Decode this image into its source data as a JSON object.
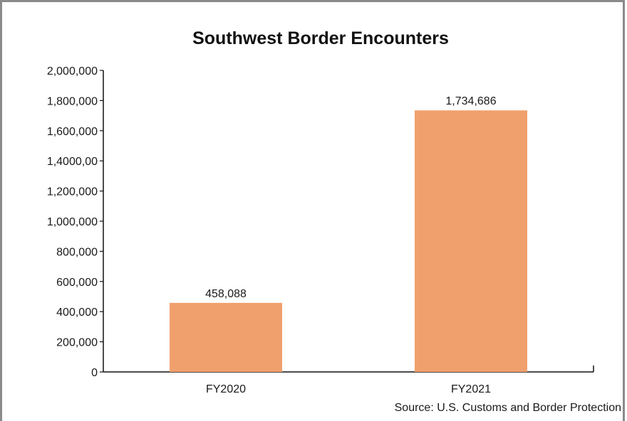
{
  "chart_data": {
    "type": "bar",
    "title": "Southwest Border Encounters",
    "categories": [
      "FY2020",
      "FY2021"
    ],
    "values": [
      458088,
      1734686
    ],
    "value_labels": [
      "458,088",
      "1,734,686"
    ],
    "ylim": [
      0,
      2000000
    ],
    "yticks": [
      0,
      200000,
      400000,
      600000,
      800000,
      1000000,
      1200000,
      1400000,
      1600000,
      1800000,
      2000000
    ],
    "ytick_labels": [
      "0",
      "200,000",
      "400,000",
      "600,000",
      "800,000",
      "1,000,000",
      "1,200,000",
      "1,4000,00",
      "1,600,000",
      "1,800,000",
      "2,000,000"
    ],
    "grid": false,
    "bar_color": "#f0a06c",
    "source": "Source: U.S. Customs and Border Protection"
  }
}
